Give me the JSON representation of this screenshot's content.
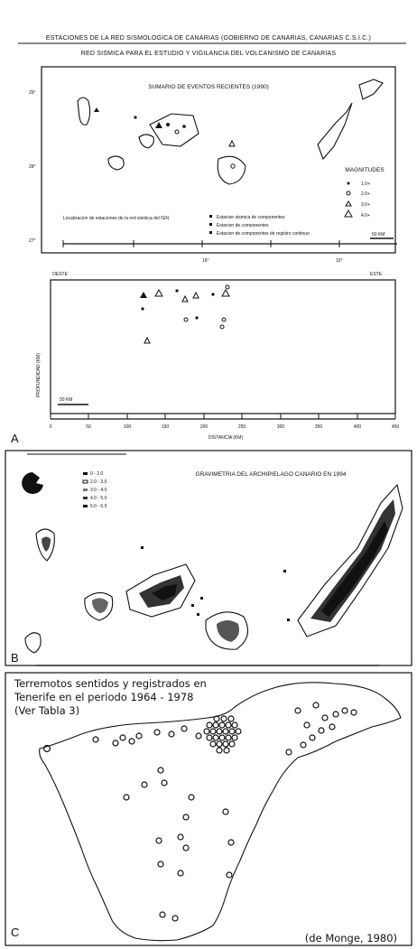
{
  "panel_a": {
    "header_line1": "ESTACIONES DE LA RED SISMOLOGICA DE CANARIAS (GOBIERNO DE CANARIAS, CANARIAS C.S.I.C.)",
    "header_line2": "RED SISMICA PARA EL ESTUDIO Y VIGILANCIA DEL VOLCANISMO DE CANARIAS",
    "map_title": "SUMARIO DE EVENTOS RECIENTES (1990)",
    "magnitudes_title": "MAGNITUDES",
    "magnitude_items": [
      "1.0+",
      "2.0+",
      "3.0+",
      "4.0+"
    ],
    "legend_left": "Localizacion de estaciones de la red sismica del IGN",
    "legend_items": [
      "Estacion sismica de componentes",
      "Estacion de componentes",
      "Estacion de componentes de registro continuo"
    ],
    "scale_map": "50 KM",
    "lat_ticks": [
      "29°",
      "28°",
      "27°"
    ],
    "lon_ticks": [
      "16°",
      "15°"
    ],
    "section_left": "OESTE",
    "section_right": "ESTE",
    "depth_label": "PROFUNDIDAD (KM)",
    "distance_label": "DISTANCIA (KM)",
    "scale_section": "50 KM",
    "x_ticks": [
      "0",
      "50",
      "100",
      "150",
      "200",
      "250",
      "300",
      "350",
      "400",
      "450"
    ],
    "panel_label": "A"
  },
  "panel_b": {
    "title": "GRAVIMETRIA DEL ARCHIPIELAGO CANARIO EN 1994",
    "legend_items": [
      "0 - 2.0",
      "2.0 - 3.0",
      "3.0 - 4.0",
      "4.0 - 5.0",
      "5.0 - 6.0"
    ],
    "panel_label": "B"
  },
  "panel_c": {
    "title_line1": "Terremotos sentidos y registrados en",
    "title_line2": "Tenerife en el periodo 1964 - 1978",
    "title_line3": "(Ver Tabla 3)",
    "source": "(de Monge, 1980)",
    "panel_label": "C"
  }
}
